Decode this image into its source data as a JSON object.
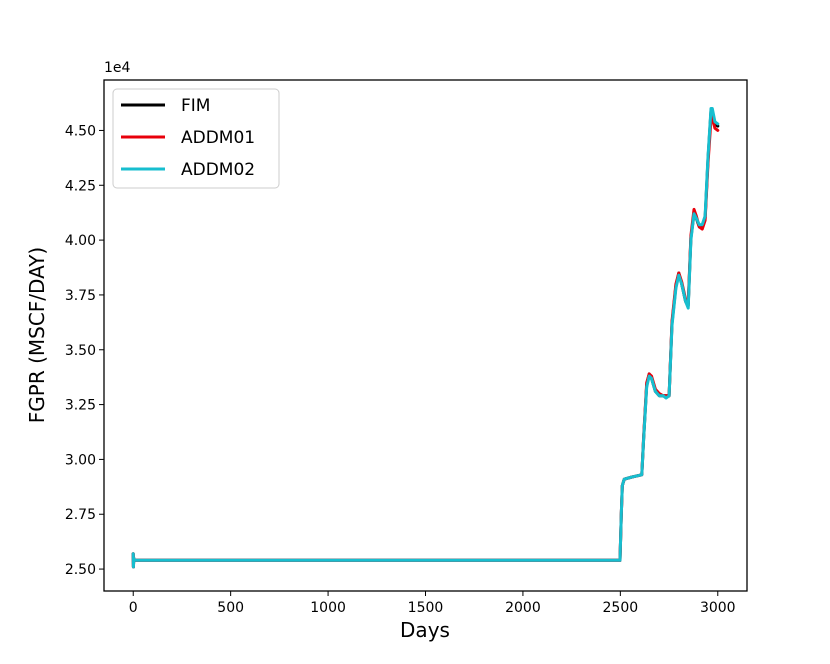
{
  "chart_data": {
    "type": "line",
    "xlabel": "Days",
    "ylabel": "FGPR  (MSCF/DAY)",
    "y_offset_label": "1e4",
    "y_multiplier": 10000,
    "xlim": [
      -150,
      3150
    ],
    "ylim": [
      2.4,
      4.73
    ],
    "x_ticks": [
      0,
      500,
      1000,
      1500,
      2000,
      2500,
      3000
    ],
    "x_tick_labels": [
      "0",
      "500",
      "1000",
      "1500",
      "2000",
      "2500",
      "3000"
    ],
    "y_ticks": [
      2.5,
      2.75,
      3.0,
      3.25,
      3.5,
      3.75,
      4.0,
      4.25,
      4.5
    ],
    "y_tick_labels": [
      "2.50",
      "2.75",
      "3.00",
      "3.25",
      "3.50",
      "3.75",
      "4.00",
      "4.25",
      "4.50"
    ],
    "legend_position": "top-left",
    "series": [
      {
        "name": "FIM",
        "color": "#000000",
        "x": [
          0,
          1,
          3,
          6,
          10,
          2498,
          2505,
          2510,
          2520,
          2560,
          2610,
          2620,
          2635,
          2648,
          2660,
          2680,
          2700,
          2720,
          2735,
          2750,
          2765,
          2785,
          2800,
          2815,
          2835,
          2848,
          2862,
          2878,
          2890,
          2905,
          2920,
          2935,
          2950,
          2965,
          2972,
          2985,
          3000
        ],
        "y": [
          2.57,
          2.51,
          2.55,
          2.54,
          2.54,
          2.54,
          2.75,
          2.88,
          2.91,
          2.92,
          2.93,
          3.1,
          3.34,
          3.39,
          3.37,
          3.31,
          3.29,
          3.29,
          3.29,
          3.29,
          3.62,
          3.79,
          3.85,
          3.8,
          3.72,
          3.7,
          4.01,
          4.12,
          4.1,
          4.06,
          4.06,
          4.1,
          4.37,
          4.59,
          4.59,
          4.53,
          4.52
        ]
      },
      {
        "name": "ADDM01",
        "color": "#e8000b",
        "x": [
          0,
          1,
          3,
          6,
          10,
          2498,
          2505,
          2510,
          2520,
          2560,
          2610,
          2620,
          2635,
          2648,
          2660,
          2680,
          2700,
          2720,
          2735,
          2750,
          2765,
          2785,
          2800,
          2815,
          2835,
          2848,
          2862,
          2878,
          2890,
          2905,
          2920,
          2935,
          2950,
          2965,
          2972,
          2985,
          3000
        ],
        "y": [
          2.57,
          2.51,
          2.55,
          2.54,
          2.54,
          2.54,
          2.75,
          2.88,
          2.91,
          2.92,
          2.93,
          3.11,
          3.35,
          3.39,
          3.38,
          3.32,
          3.3,
          3.29,
          3.29,
          3.29,
          3.63,
          3.8,
          3.85,
          3.81,
          3.73,
          3.71,
          4.02,
          4.14,
          4.11,
          4.06,
          4.05,
          4.09,
          4.35,
          4.55,
          4.56,
          4.51,
          4.5
        ]
      },
      {
        "name": "ADDM02",
        "color": "#17becf",
        "x": [
          0,
          1,
          3,
          6,
          10,
          2498,
          2505,
          2510,
          2520,
          2560,
          2610,
          2620,
          2635,
          2648,
          2660,
          2680,
          2700,
          2720,
          2735,
          2750,
          2765,
          2785,
          2800,
          2815,
          2835,
          2848,
          2862,
          2878,
          2890,
          2905,
          2920,
          2935,
          2950,
          2965,
          2972,
          2985,
          3000
        ],
        "y": [
          2.57,
          2.51,
          2.55,
          2.54,
          2.54,
          2.54,
          2.75,
          2.88,
          2.91,
          2.92,
          2.93,
          3.1,
          3.33,
          3.38,
          3.37,
          3.31,
          3.29,
          3.29,
          3.28,
          3.29,
          3.61,
          3.78,
          3.84,
          3.8,
          3.72,
          3.69,
          4.0,
          4.12,
          4.1,
          4.07,
          4.07,
          4.11,
          4.38,
          4.6,
          4.6,
          4.54,
          4.53
        ]
      }
    ]
  }
}
